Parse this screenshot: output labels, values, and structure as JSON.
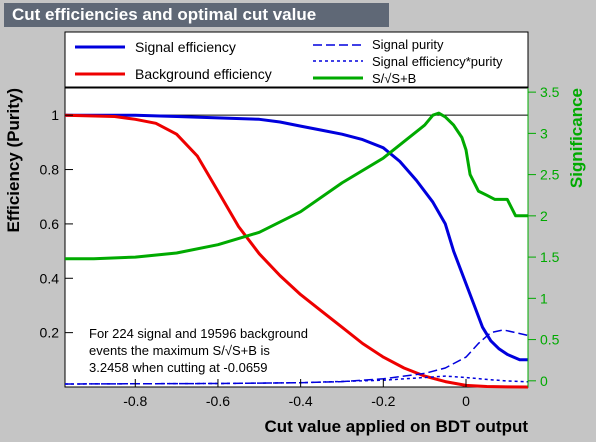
{
  "title": "Cut efficiencies and optimal cut value",
  "chart_data": {
    "type": "line",
    "xlabel": "Cut value applied on BDT output",
    "ylabel": "Efficiency (Purity)",
    "y2label": "Significance",
    "xlim": [
      -0.97,
      0.15
    ],
    "ylim": [
      0,
      1.1
    ],
    "y2lim": [
      -0.075,
      3.55
    ],
    "xticks": [
      -0.8,
      -0.6,
      -0.4,
      -0.2,
      0
    ],
    "xtick_labels": [
      "-0.8",
      "-0.6",
      "-0.4",
      "-0.2",
      "0"
    ],
    "yticks": [
      0.2,
      0.4,
      0.6,
      0.8,
      1
    ],
    "ytick_labels": [
      "0.2",
      "0.4",
      "0.6",
      "0.8",
      "1"
    ],
    "y2ticks": [
      0,
      0.5,
      1,
      1.5,
      2,
      2.5,
      3,
      3.5
    ],
    "y2tick_labels": [
      "0",
      "0.5",
      "1",
      "1.5",
      "2",
      "2.5",
      "3",
      "3.5"
    ],
    "reference_line_y": 1,
    "grid": false,
    "legend_position": "top",
    "colors": {
      "signal": "#0000dd",
      "background": "#ee0000",
      "significance": "#00aa00",
      "reference": "#000000"
    },
    "legend": [
      {
        "label": "Signal efficiency",
        "style": "blue-solid"
      },
      {
        "label": "Background efficiency",
        "style": "red-solid"
      },
      {
        "label": "Signal purity",
        "style": "blue-dashed"
      },
      {
        "label": "Signal efficiency*purity",
        "style": "blue-dotted"
      },
      {
        "label": "S/√S+B",
        "style": "green-solid"
      }
    ],
    "annotation": [
      "For 224 signal and 19596 background",
      "events the maximum S/√S+B is",
      "3.2458 when cutting at -0.0659"
    ],
    "series": [
      {
        "key": "signal",
        "axis": "left",
        "dash": "",
        "width": 3,
        "x": [
          -0.97,
          -0.8,
          -0.7,
          -0.6,
          -0.5,
          -0.45,
          -0.4,
          -0.35,
          -0.3,
          -0.25,
          -0.2,
          -0.16,
          -0.12,
          -0.08,
          -0.05,
          -0.03,
          0.0,
          0.02,
          0.04,
          0.06,
          0.08,
          0.1,
          0.13,
          0.15
        ],
        "y": [
          1.0,
          1.0,
          0.995,
          0.99,
          0.985,
          0.975,
          0.96,
          0.945,
          0.93,
          0.91,
          0.88,
          0.83,
          0.76,
          0.68,
          0.6,
          0.5,
          0.38,
          0.3,
          0.22,
          0.17,
          0.14,
          0.12,
          0.1,
          0.1
        ]
      },
      {
        "key": "background",
        "axis": "left",
        "dash": "",
        "width": 3,
        "x": [
          -0.97,
          -0.85,
          -0.8,
          -0.75,
          -0.7,
          -0.65,
          -0.6,
          -0.55,
          -0.5,
          -0.45,
          -0.4,
          -0.35,
          -0.3,
          -0.25,
          -0.2,
          -0.15,
          -0.1,
          -0.05,
          0.0,
          0.05,
          0.1,
          0.15
        ],
        "y": [
          1.0,
          0.995,
          0.985,
          0.97,
          0.93,
          0.85,
          0.72,
          0.59,
          0.49,
          0.41,
          0.34,
          0.28,
          0.22,
          0.16,
          0.11,
          0.07,
          0.04,
          0.02,
          0.006,
          0.002,
          0.0005,
          0.0
        ]
      },
      {
        "key": "purity",
        "axis": "left",
        "dash": "9 4",
        "width": 1.5,
        "x": [
          -0.97,
          -0.6,
          -0.4,
          -0.3,
          -0.2,
          -0.1,
          -0.05,
          0.0,
          0.03,
          0.06,
          0.09,
          0.12,
          0.15
        ],
        "y": [
          0.011,
          0.013,
          0.016,
          0.02,
          0.03,
          0.05,
          0.07,
          0.11,
          0.16,
          0.2,
          0.21,
          0.2,
          0.19
        ]
      },
      {
        "key": "effpurity",
        "axis": "left",
        "dash": "3 3",
        "width": 1.5,
        "x": [
          -0.97,
          -0.6,
          -0.4,
          -0.2,
          -0.1,
          -0.05,
          0.0,
          0.05,
          0.1,
          0.15
        ],
        "y": [
          0.011,
          0.013,
          0.016,
          0.025,
          0.035,
          0.04,
          0.035,
          0.028,
          0.022,
          0.019
        ]
      },
      {
        "key": "significance",
        "axis": "right",
        "dash": "",
        "width": 3,
        "x": [
          -0.97,
          -0.9,
          -0.8,
          -0.7,
          -0.6,
          -0.5,
          -0.4,
          -0.3,
          -0.2,
          -0.15,
          -0.1,
          -0.08,
          -0.0659,
          -0.05,
          -0.03,
          -0.01,
          0.0,
          0.01,
          0.03,
          0.05,
          0.07,
          0.1,
          0.12,
          0.15
        ],
        "y": [
          1.48,
          1.48,
          1.5,
          1.55,
          1.65,
          1.8,
          2.05,
          2.4,
          2.7,
          2.9,
          3.1,
          3.22,
          3.2458,
          3.2,
          3.1,
          2.95,
          2.8,
          2.5,
          2.3,
          2.25,
          2.2,
          2.2,
          2.0,
          2.0
        ]
      }
    ]
  }
}
